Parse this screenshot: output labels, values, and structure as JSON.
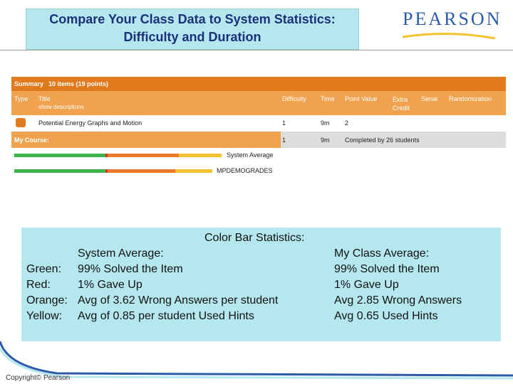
{
  "header": {
    "title_lines": [
      "Compare Your Class Data to System Statistics:",
      "Difficulty and Duration"
    ],
    "logo": "PEARSON"
  },
  "screenshot": {
    "summary_label": "Summary",
    "summary_value": "10 items (19 points)",
    "columns": [
      "Type",
      "Title",
      "Difficulty",
      "Time",
      "Point Value",
      "Extra Credit",
      "Serial",
      "Randomization"
    ],
    "title_sub": "show descriptions",
    "item": {
      "title": "Potential Energy Graphs and Motion",
      "difficulty": "1",
      "time": "9m",
      "points": "2"
    },
    "my_course": {
      "label": "My Course:",
      "difficulty": "1",
      "time": "9m",
      "completed": "Completed by 26 students"
    },
    "bar_labels": [
      "System Average",
      "MPDEMOGRADES"
    ]
  },
  "stats": {
    "title": "Color Bar Statistics:",
    "system_heading": "System Average:",
    "system_rows": [
      [
        "Green:",
        "99% Solved the Item"
      ],
      [
        "Red:",
        "1% Gave Up"
      ],
      [
        "Orange:",
        "Avg of 3.62 Wrong Answers per student"
      ],
      [
        "Yellow:",
        "Avg of 0.85 per student Used Hints"
      ]
    ],
    "class_heading": "My Class Average:",
    "class_lines": [
      "99% Solved the Item",
      "1% Gave Up",
      "Avg 2.85 Wrong Answers",
      "Avg 0.65 Used Hints"
    ]
  },
  "footer": {
    "copyright": "Copyright© Pearson"
  }
}
